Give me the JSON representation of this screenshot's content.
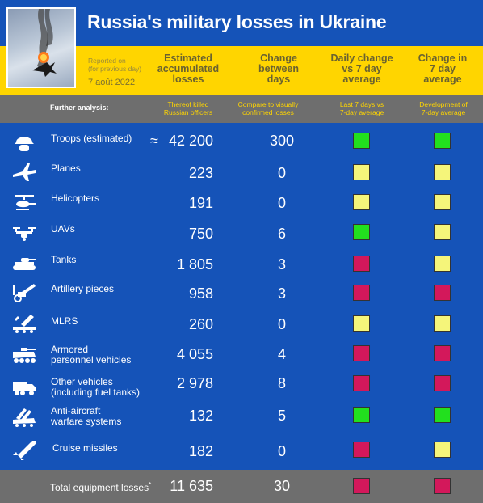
{
  "title": "Russia's military losses in Ukraine",
  "reported_note": {
    "line1": "Reported on",
    "line2": "(for previous day)"
  },
  "report_date": "7 août 2022",
  "columns": {
    "accumulated": {
      "l1": "Estimated",
      "l2": "accumulated",
      "l3": "losses"
    },
    "change": {
      "l1": "Change",
      "l2": "between",
      "l3": "days"
    },
    "daily": {
      "l1": "Daily change",
      "l2": "vs 7 day",
      "l3": "average"
    },
    "seven": {
      "l1": "Change in",
      "l2": "7 day",
      "l3": "average"
    }
  },
  "further": {
    "label": "Further analysis:",
    "killed": {
      "l1": "Thereof killed",
      "l2": "Russian officers"
    },
    "compare": {
      "l1": "Compare to visually",
      "l2": "confirmed losses"
    },
    "last7": {
      "l1": "Last 7 days vs",
      "l2": "7-day average"
    },
    "development": {
      "l1": "Development of",
      "l2": "7-day average"
    }
  },
  "colors": {
    "green": "#22e01e",
    "yellow": "#f5f57a",
    "red": "#d3185b"
  },
  "rows": [
    {
      "icon": "helmet-icon",
      "l1": "Troops (estimated)",
      "l2": "",
      "approx": "≈",
      "acc": "42 200",
      "chg": "300",
      "c1": "green",
      "c2": "green"
    },
    {
      "icon": "plane-icon",
      "l1": "Planes",
      "l2": "",
      "approx": "",
      "acc": "223",
      "chg": "0",
      "c1": "yellow",
      "c2": "yellow"
    },
    {
      "icon": "helicopter-icon",
      "l1": "Helicopters",
      "l2": "",
      "approx": "",
      "acc": "191",
      "chg": "0",
      "c1": "yellow",
      "c2": "yellow"
    },
    {
      "icon": "drone-icon",
      "l1": "UAVs",
      "l2": "",
      "approx": "",
      "acc": "750",
      "chg": "6",
      "c1": "green",
      "c2": "yellow"
    },
    {
      "icon": "tank-icon",
      "l1": "Tanks",
      "l2": "",
      "approx": "",
      "acc": "1 805",
      "chg": "3",
      "c1": "red",
      "c2": "yellow"
    },
    {
      "icon": "artillery-icon",
      "l1": "Artillery pieces",
      "l2": "",
      "approx": "",
      "acc": "958",
      "chg": "3",
      "c1": "red",
      "c2": "red"
    },
    {
      "icon": "mlrs-icon",
      "l1": "MLRS",
      "l2": "",
      "approx": "",
      "acc": "260",
      "chg": "0",
      "c1": "yellow",
      "c2": "yellow"
    },
    {
      "icon": "apc-icon",
      "l1": "Armored",
      "l2": "personnel vehicles",
      "approx": "",
      "acc": "4 055",
      "chg": "4",
      "c1": "red",
      "c2": "red"
    },
    {
      "icon": "truck-icon",
      "l1": "Other vehicles",
      "l2": "(including fuel tanks)",
      "approx": "",
      "acc": "2 978",
      "chg": "8",
      "c1": "red",
      "c2": "red"
    },
    {
      "icon": "anti-aircraft-icon",
      "l1": "Anti-aircraft",
      "l2": "warfare systems",
      "approx": "",
      "acc": "132",
      "chg": "5",
      "c1": "green",
      "c2": "green"
    },
    {
      "icon": "missile-icon",
      "l1": "Cruise missiles",
      "l2": "",
      "approx": "",
      "acc": "182",
      "chg": "0",
      "c1": "red",
      "c2": "yellow"
    }
  ],
  "total": {
    "label": "Total equipment losses",
    "star": "*",
    "acc": "11 635",
    "chg": "30",
    "c1": "red",
    "c2": "red"
  }
}
